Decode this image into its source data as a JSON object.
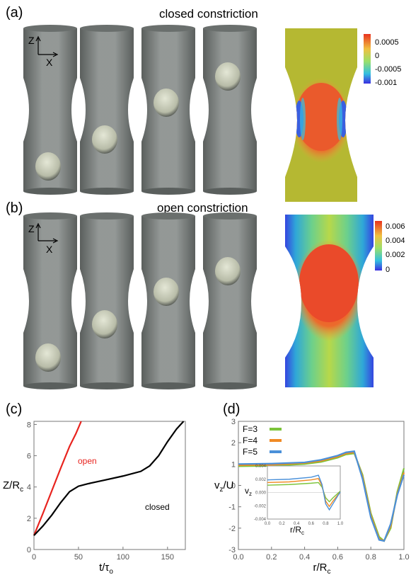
{
  "panel_a": {
    "label": "(a)",
    "title": "closed constriction",
    "axis_z": "Z",
    "axis_x": "X",
    "colorbar_ticks": [
      "0.0005",
      "0",
      "-0.0005",
      "-0.001"
    ]
  },
  "panel_b": {
    "label": "(b)",
    "title": "open constriction",
    "axis_z": "Z",
    "axis_x": "X",
    "colorbar_ticks": [
      "0.006",
      "0.004",
      "0.002",
      "0"
    ]
  },
  "chart_data": [
    {
      "panel": "(c)",
      "type": "line",
      "xlabel": "t/τ",
      "xlabel_sub": "o",
      "ylabel": "Z/R",
      "ylabel_sub": "c",
      "xlim": [
        0,
        170
      ],
      "ylim": [
        0,
        8.2
      ],
      "x_ticks": [
        0,
        50,
        100,
        150
      ],
      "y_ticks": [
        0,
        2,
        4,
        6,
        8
      ],
      "grid": false,
      "series": [
        {
          "name": "open",
          "color": "#e8231e",
          "x": [
            0,
            10,
            20,
            30,
            40,
            47,
            53
          ],
          "y": [
            0.9,
            2.3,
            3.75,
            5.2,
            6.6,
            7.4,
            8.2
          ]
        },
        {
          "name": "closed",
          "color": "#000000",
          "x": [
            0,
            10,
            20,
            30,
            40,
            50,
            60,
            80,
            100,
            120,
            130,
            140,
            150,
            160,
            168
          ],
          "y": [
            0.9,
            1.5,
            2.2,
            3.0,
            3.7,
            4.05,
            4.2,
            4.45,
            4.7,
            5.0,
            5.35,
            6.0,
            6.9,
            7.7,
            8.2
          ]
        }
      ]
    },
    {
      "panel": "(d)",
      "type": "line",
      "xlabel": "r/R",
      "xlabel_sub": "c",
      "ylabel": "v",
      "ylabel_sub": "z",
      "ylabel_suffix": "/U",
      "xlim": [
        0,
        1.0
      ],
      "ylim": [
        -3,
        3
      ],
      "x_ticks": [
        "0.0",
        "0.2",
        "0.4",
        "0.6",
        "0.8",
        "1.0"
      ],
      "y_ticks": [
        -3,
        -2,
        -1,
        0,
        1,
        2,
        3
      ],
      "grid": false,
      "legend_position": "top-left",
      "series": [
        {
          "name": "F=3",
          "color": "#7cc43a",
          "x": [
            0,
            0.2,
            0.4,
            0.5,
            0.6,
            0.65,
            0.7,
            0.75,
            0.8,
            0.85,
            0.88,
            0.92,
            0.96,
            1.0
          ],
          "y": [
            0.9,
            0.92,
            1.0,
            1.1,
            1.3,
            1.45,
            1.5,
            0.5,
            -1.3,
            -2.4,
            -2.6,
            -2.0,
            -0.3,
            0.8
          ]
        },
        {
          "name": "F=4",
          "color": "#f08a24",
          "x": [
            0,
            0.2,
            0.4,
            0.5,
            0.6,
            0.65,
            0.7,
            0.75,
            0.8,
            0.85,
            0.88,
            0.92,
            0.96,
            1.0
          ],
          "y": [
            0.95,
            0.97,
            1.05,
            1.15,
            1.35,
            1.5,
            1.55,
            0.4,
            -1.4,
            -2.5,
            -2.6,
            -1.9,
            -0.4,
            0.6
          ]
        },
        {
          "name": "F=5",
          "color": "#4a90d9",
          "x": [
            0,
            0.2,
            0.4,
            0.5,
            0.6,
            0.65,
            0.7,
            0.75,
            0.8,
            0.85,
            0.88,
            0.92,
            0.96,
            1.0
          ],
          "y": [
            1.0,
            1.02,
            1.08,
            1.2,
            1.4,
            1.55,
            1.6,
            0.3,
            -1.5,
            -2.55,
            -2.6,
            -1.8,
            -0.45,
            0.5
          ]
        }
      ],
      "inset": {
        "ylabel": "v",
        "ylabel_sub": "z",
        "xlabel": "r/R",
        "xlabel_sub": "c",
        "xlim": [
          0,
          1.0
        ],
        "ylim": [
          -0.004,
          0.004
        ],
        "x_ticks": [
          "0.0",
          "0.2",
          "0.4",
          "0.6",
          "0.8",
          "1.0"
        ],
        "y_ticks": [
          "0.004",
          "0.002",
          "0.000",
          "-0.002",
          "-0.004"
        ],
        "series": [
          {
            "name": "F=3",
            "color": "#7cc43a",
            "x": [
              0,
              0.3,
              0.6,
              0.7,
              0.75,
              0.8,
              0.85,
              0.9,
              1.0
            ],
            "y": [
              0.0011,
              0.0012,
              0.0014,
              0.0015,
              0.0008,
              -0.0008,
              -0.0014,
              -0.0008,
              0.0002
            ]
          },
          {
            "name": "F=4",
            "color": "#f08a24",
            "x": [
              0,
              0.3,
              0.6,
              0.7,
              0.75,
              0.8,
              0.85,
              0.9,
              1.0
            ],
            "y": [
              0.0015,
              0.0016,
              0.0019,
              0.0021,
              0.001,
              -0.0013,
              -0.0021,
              -0.0013,
              0.0001
            ]
          },
          {
            "name": "F=5",
            "color": "#4a90d9",
            "x": [
              0,
              0.3,
              0.6,
              0.7,
              0.75,
              0.8,
              0.85,
              0.9,
              1.0
            ],
            "y": [
              0.0019,
              0.002,
              0.0023,
              0.0026,
              0.0012,
              -0.0017,
              -0.0026,
              -0.0017,
              0.0001
            ]
          }
        ]
      }
    }
  ],
  "panel_c_label": "(c)",
  "panel_d_label": "(d)",
  "colors": {
    "tube": "#7a7f7d",
    "tube_dark": "#4a4f4d",
    "droplet": "#c9cdbb",
    "bg_field_a": "#b5b832",
    "field_hot": "#e8432a",
    "field_cold": "#3a4fe0"
  }
}
